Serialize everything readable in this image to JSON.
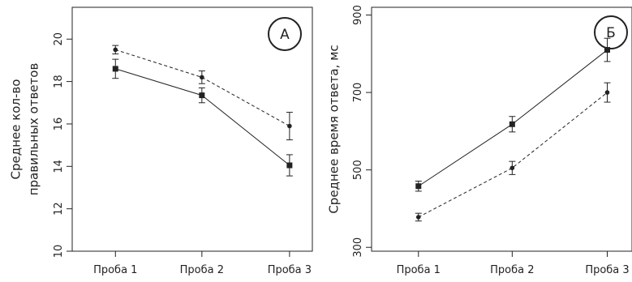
{
  "chart_data": [
    {
      "type": "line",
      "panel_label": "А",
      "ylabel_lines": [
        "Среднее  кол-во",
        "правильных  ответов"
      ],
      "xlabel": "",
      "categories": [
        "Проба 1",
        "Проба 2",
        "Проба 3"
      ],
      "ylim": [
        10,
        21.5
      ],
      "yticks": [
        10,
        12,
        14,
        16,
        18,
        20
      ],
      "grid": false,
      "series": [
        {
          "style": "solid",
          "marker": "square",
          "values": [
            18.6,
            17.35,
            14.05
          ],
          "error": [
            0.45,
            0.35,
            0.5
          ]
        },
        {
          "style": "dashed",
          "marker": "circle",
          "values": [
            19.5,
            18.2,
            15.9
          ],
          "error": [
            0.2,
            0.3,
            0.65
          ]
        }
      ]
    },
    {
      "type": "line",
      "panel_label": "Б",
      "ylabel_lines": [
        "Среднее время ответа,  мс"
      ],
      "xlabel": "",
      "categories": [
        "Проба 1",
        "Проба 2",
        "Проба 3"
      ],
      "ylim": [
        290,
        920
      ],
      "yticks": [
        300,
        500,
        700,
        900
      ],
      "grid": false,
      "series": [
        {
          "style": "solid",
          "marker": "square",
          "values": [
            458,
            618,
            810
          ],
          "error": [
            13,
            20,
            30
          ]
        },
        {
          "style": "dashed",
          "marker": "circle",
          "values": [
            378,
            505,
            700
          ],
          "error": [
            10,
            17,
            25
          ]
        }
      ]
    }
  ],
  "colors": {
    "ink": "#222222",
    "background": "#ffffff"
  }
}
